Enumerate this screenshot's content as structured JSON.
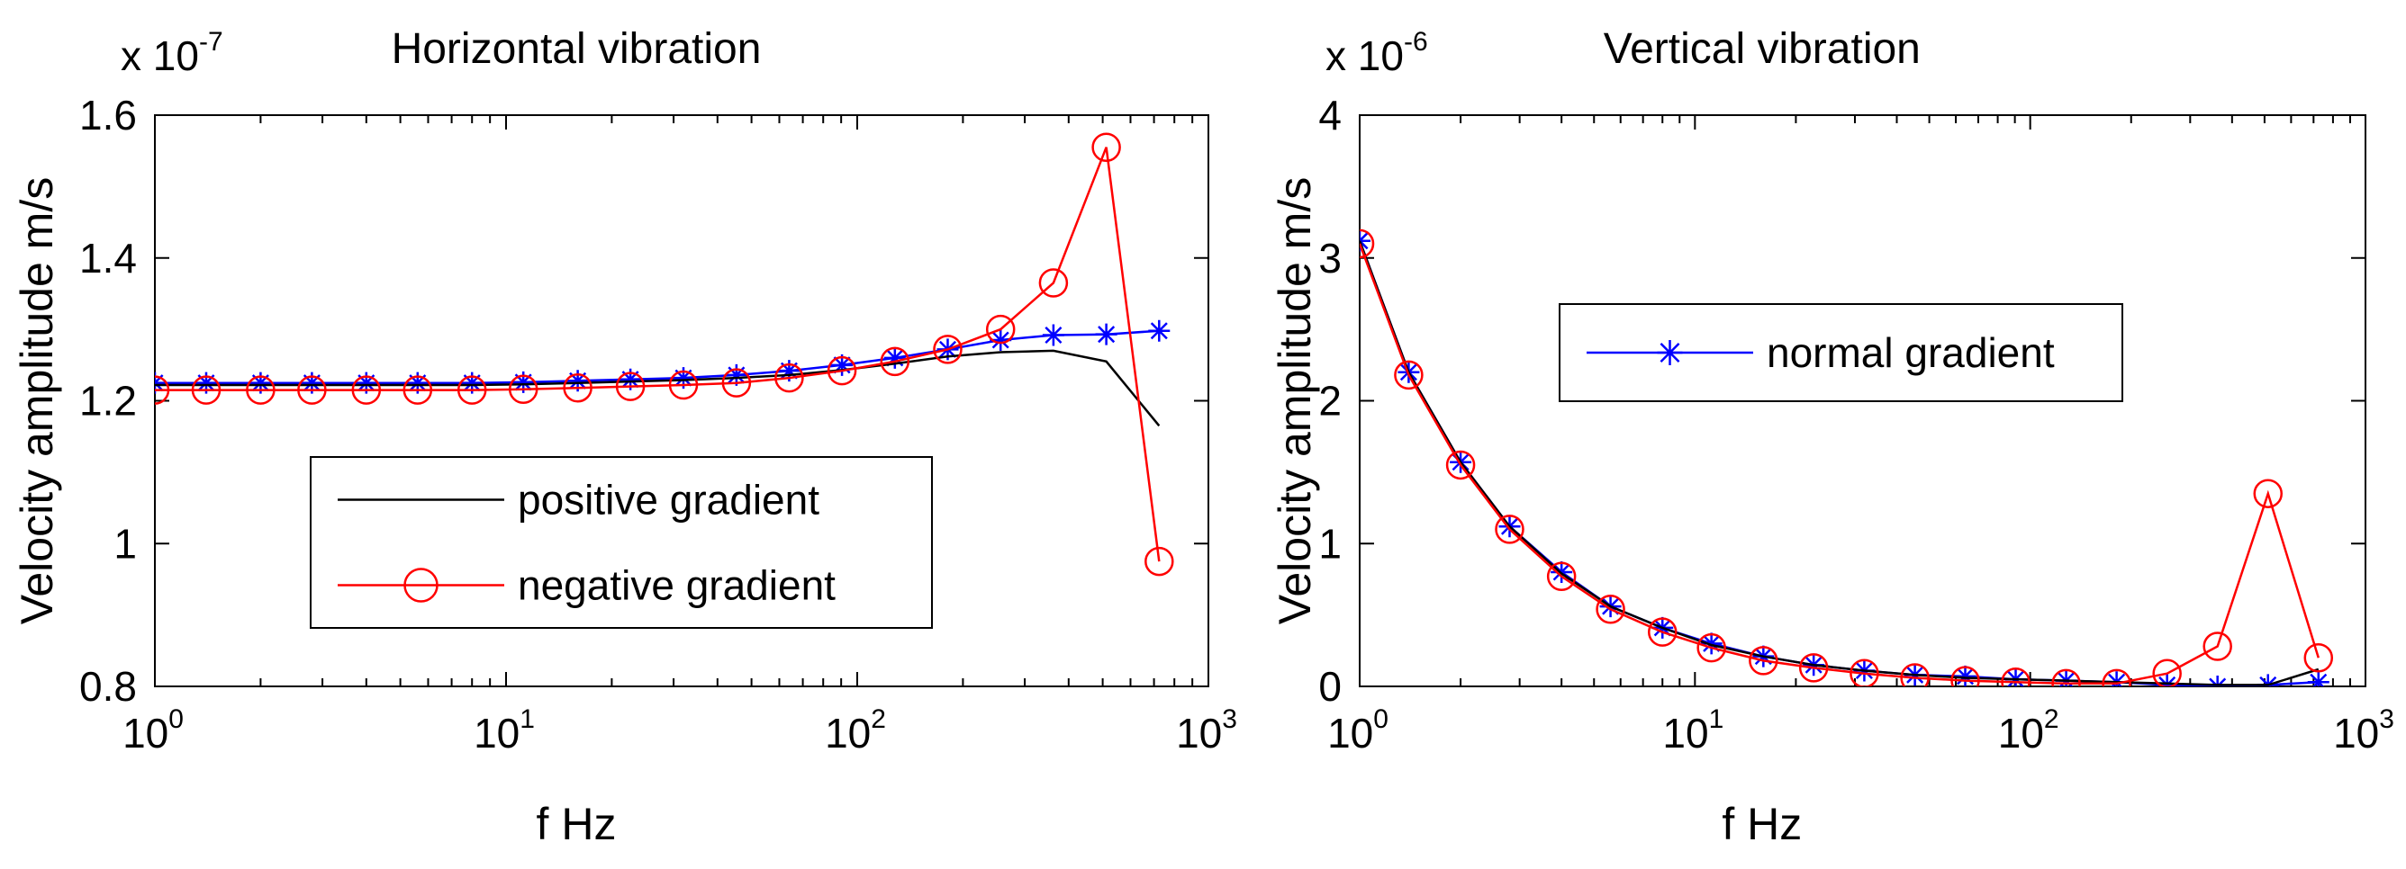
{
  "figure": {
    "colors": {
      "positive": "#000000",
      "negative": "#ff0000",
      "normal": "#0000ff",
      "axis": "#000000",
      "background": "#ffffff"
    }
  },
  "chart_data": [
    {
      "type": "line",
      "title": "Horizontal vibration",
      "xlabel": "f Hz",
      "ylabel": "Velocity amplitude m/s",
      "y_multiplier": {
        "base": "x 10",
        "exponent": "-7"
      },
      "xscale": "log",
      "xlim": [
        1,
        1000
      ],
      "ylim": [
        0.8,
        1.6
      ],
      "xticks": [
        1,
        10,
        100,
        1000
      ],
      "xtick_labels": [
        {
          "base": "10",
          "exp": "0"
        },
        {
          "base": "10",
          "exp": "1"
        },
        {
          "base": "10",
          "exp": "2"
        },
        {
          "base": "10",
          "exp": "3"
        }
      ],
      "yticks": [
        0.8,
        1.0,
        1.2,
        1.4,
        1.6
      ],
      "ytick_labels": [
        "0.8",
        "1",
        "1.2",
        "1.4",
        "1.6"
      ],
      "grid": false,
      "legend": {
        "position": "center-left",
        "entries": [
          {
            "series": "positive",
            "label": "positive gradient"
          },
          {
            "series": "negative",
            "label": "negative gradient"
          }
        ]
      },
      "x": [
        1.0,
        1.4,
        2.0,
        2.8,
        4.0,
        5.6,
        8.0,
        11.2,
        16.0,
        22.6,
        32.0,
        45.3,
        64.0,
        90.5,
        128.0,
        181.0,
        256.0,
        362.0,
        512.0,
        724.0
      ],
      "series": [
        {
          "key": "positive",
          "name": "positive gradient",
          "color": "#000000",
          "marker": "none",
          "values": [
            1.222,
            1.222,
            1.222,
            1.222,
            1.222,
            1.222,
            1.222,
            1.223,
            1.225,
            1.227,
            1.229,
            1.232,
            1.236,
            1.243,
            1.252,
            1.262,
            1.268,
            1.27,
            1.255,
            1.165
          ]
        },
        {
          "key": "negative",
          "name": "negative gradient",
          "color": "#ff0000",
          "marker": "circle",
          "values": [
            1.215,
            1.215,
            1.215,
            1.215,
            1.215,
            1.215,
            1.215,
            1.216,
            1.218,
            1.22,
            1.222,
            1.225,
            1.232,
            1.242,
            1.255,
            1.272,
            1.3,
            1.365,
            1.555,
            0.975
          ]
        },
        {
          "key": "normal",
          "name": "normal gradient",
          "color": "#0000ff",
          "marker": "star",
          "values": [
            1.225,
            1.225,
            1.225,
            1.225,
            1.225,
            1.225,
            1.225,
            1.226,
            1.228,
            1.23,
            1.232,
            1.236,
            1.242,
            1.25,
            1.26,
            1.272,
            1.285,
            1.292,
            1.293,
            1.298
          ]
        }
      ]
    },
    {
      "type": "line",
      "title": "Vertical vibration",
      "xlabel": "f Hz",
      "ylabel": "Velocity amplitude m/s",
      "y_multiplier": {
        "base": "x 10",
        "exponent": "-6"
      },
      "xscale": "log",
      "xlim": [
        1,
        1000
      ],
      "ylim": [
        0,
        4
      ],
      "xticks": [
        1,
        10,
        100,
        1000
      ],
      "xtick_labels": [
        {
          "base": "10",
          "exp": "0"
        },
        {
          "base": "10",
          "exp": "1"
        },
        {
          "base": "10",
          "exp": "2"
        },
        {
          "base": "10",
          "exp": "3"
        }
      ],
      "yticks": [
        0,
        1,
        2,
        3,
        4
      ],
      "ytick_labels": [
        "0",
        "1",
        "2",
        "3",
        "4"
      ],
      "grid": false,
      "legend": {
        "position": "top-center",
        "entries": [
          {
            "series": "normal",
            "label": "normal gradient"
          }
        ]
      },
      "x": [
        1.0,
        1.4,
        2.0,
        2.8,
        4.0,
        5.6,
        8.0,
        11.2,
        16.0,
        22.6,
        32.0,
        45.3,
        64.0,
        90.5,
        128.0,
        181.0,
        256.0,
        362.0,
        512.0,
        724.0
      ],
      "series": [
        {
          "key": "positive",
          "name": "positive gradient",
          "color": "#000000",
          "marker": "none",
          "values": [
            3.12,
            2.2,
            1.57,
            1.12,
            0.79,
            0.56,
            0.41,
            0.29,
            0.21,
            0.15,
            0.11,
            0.08,
            0.06,
            0.05,
            0.04,
            0.03,
            0.02,
            0.01,
            0.01,
            0.12
          ]
        },
        {
          "key": "negative",
          "name": "negative gradient",
          "color": "#ff0000",
          "marker": "circle",
          "values": [
            3.1,
            2.18,
            1.55,
            1.1,
            0.77,
            0.54,
            0.38,
            0.27,
            0.18,
            0.13,
            0.09,
            0.06,
            0.04,
            0.03,
            0.02,
            0.02,
            0.09,
            0.28,
            1.35,
            0.2
          ]
        },
        {
          "key": "normal",
          "name": "normal gradient",
          "color": "#0000ff",
          "marker": "star",
          "values": [
            3.12,
            2.2,
            1.57,
            1.12,
            0.8,
            0.56,
            0.41,
            0.3,
            0.21,
            0.15,
            0.11,
            0.08,
            0.07,
            0.05,
            0.04,
            0.03,
            0.01,
            0.0,
            0.01,
            0.03
          ]
        }
      ]
    }
  ]
}
